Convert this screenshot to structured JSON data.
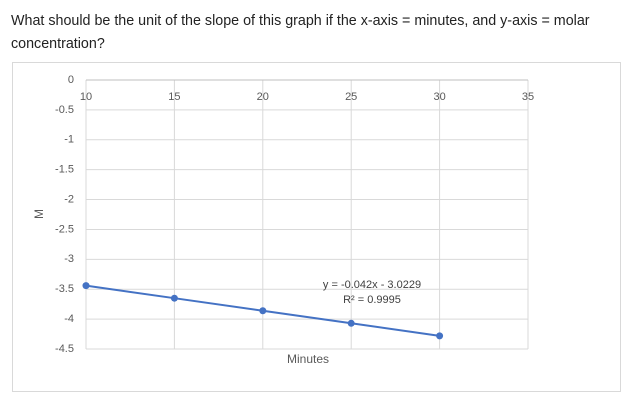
{
  "question": "What should be the unit of the slope of this graph if the x-axis = minutes, and y-axis = molar concentration?",
  "chart_data": {
    "type": "line",
    "x_label": "Minutes",
    "y_label": "M",
    "series": [
      {
        "color": "#4472c4",
        "x": [
          10,
          15,
          20,
          25,
          30
        ],
        "values": [
          -3.44,
          -3.65,
          -3.86,
          -4.07,
          -4.28
        ]
      }
    ],
    "xlim": [
      10,
      35
    ],
    "xticks": [
      10,
      15,
      20,
      25,
      30,
      35
    ],
    "ylim": [
      -4.5,
      0
    ],
    "yticks": [
      0,
      -0.5,
      -1,
      -1.5,
      -2,
      -2.5,
      -3,
      -3.5,
      -4,
      -4.5
    ],
    "grid": true,
    "annotations": [
      "y = -0.042x - 3.0229",
      "R² = 0.9995"
    ]
  }
}
